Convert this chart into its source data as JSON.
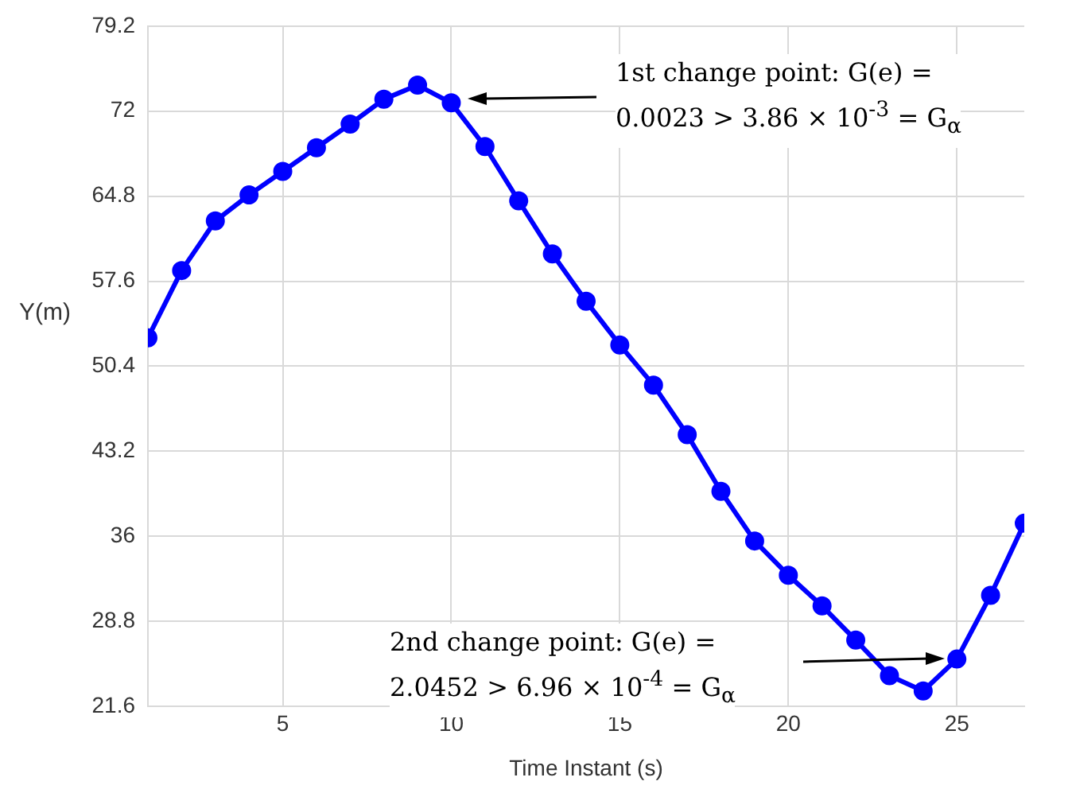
{
  "chart_data": {
    "type": "line",
    "xlabel": "Time Instant (s)",
    "ylabel": "Y(m)",
    "x": [
      1,
      2,
      3,
      4,
      5,
      6,
      7,
      8,
      9,
      10,
      11,
      12,
      13,
      14,
      15,
      16,
      17,
      18,
      19,
      20,
      21,
      22,
      23,
      24,
      25,
      26,
      27
    ],
    "series": [
      {
        "color": "#0000ff",
        "values": [
          52.8,
          58.5,
          62.7,
          64.9,
          66.9,
          68.9,
          70.9,
          73.0,
          74.2,
          72.7,
          69.0,
          64.4,
          59.9,
          55.9,
          52.2,
          48.8,
          44.6,
          39.8,
          35.6,
          32.7,
          30.1,
          27.2,
          24.2,
          22.9,
          25.6,
          31.0,
          37.1
        ]
      }
    ],
    "xlim": [
      1,
      27
    ],
    "xticks": [
      5,
      10,
      15,
      20,
      25
    ],
    "ylim": [
      21.6,
      79.2
    ],
    "yticks": [
      21.6,
      28.8,
      36,
      43.2,
      50.4,
      57.6,
      64.8,
      72,
      79.2
    ],
    "grid": true,
    "marker": "circle",
    "line_style": "solid",
    "annotations": [
      "1st change point: G(e) =\n0.0023 > 3.86 × 10$^{-3}$ = G$_{α}$",
      "2nd change point: G(e) =\n2.0452 > 6.96 × 10$^{-4}$ = G$_{α}$"
    ]
  }
}
